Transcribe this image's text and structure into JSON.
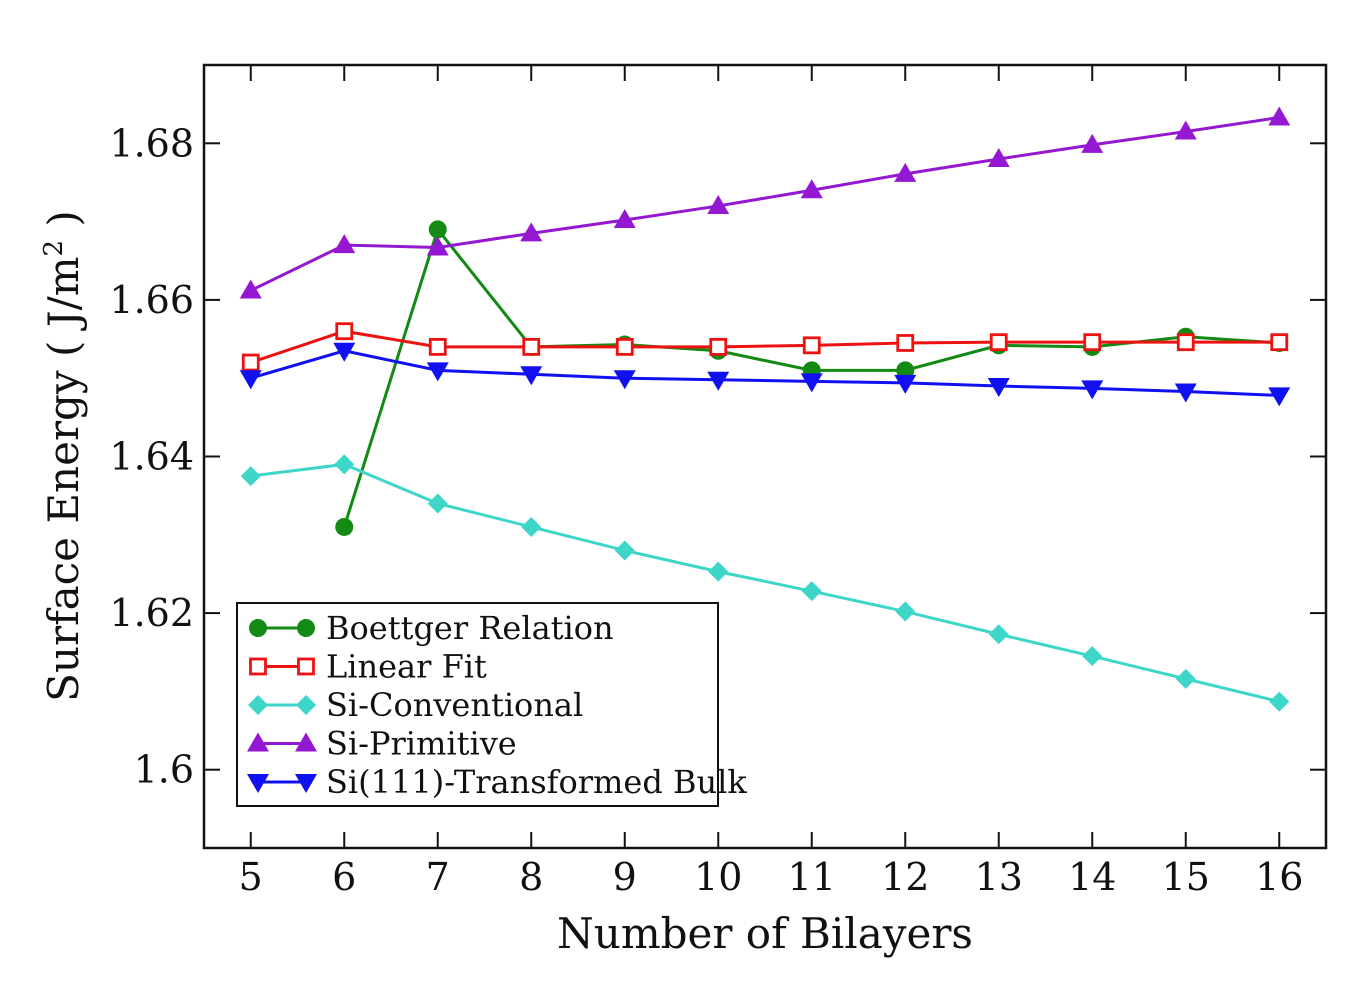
{
  "chart_data": {
    "type": "line",
    "title": "",
    "xlabel": "Number of Bilayers",
    "ylabel": "Surface Energy ( J/m",
    "ylabel_sup": "2",
    "ylabel_close": " )",
    "xlim": [
      4.5,
      16.5
    ],
    "ylim": [
      1.59,
      1.69
    ],
    "xticks": [
      5,
      6,
      7,
      8,
      9,
      10,
      11,
      12,
      13,
      14,
      15,
      16
    ],
    "xtick_labels": [
      "5",
      "6",
      "7",
      "8",
      "9",
      "10",
      "11",
      "12",
      "13",
      "14",
      "15",
      "16"
    ],
    "yticks": [
      1.6,
      1.62,
      1.64,
      1.66,
      1.68
    ],
    "ytick_labels": [
      "1.6",
      "1.62",
      "1.64",
      "1.66",
      "1.68"
    ],
    "grid": false,
    "legend_position": "bottom-left",
    "series": [
      {
        "name": "Boettger Relation",
        "color": "#138a13",
        "marker": "circle",
        "x": [
          6,
          7,
          8,
          9,
          10,
          11,
          12,
          13,
          14,
          15,
          16
        ],
        "values": [
          1.631,
          1.669,
          1.654,
          1.6543,
          1.6535,
          1.651,
          1.651,
          1.6542,
          1.654,
          1.6553,
          1.6545
        ]
      },
      {
        "name": "Linear Fit",
        "color": "#ee1111",
        "marker": "square-open",
        "x": [
          5,
          6,
          7,
          8,
          9,
          10,
          11,
          12,
          13,
          14,
          15,
          16
        ],
        "values": [
          1.652,
          1.656,
          1.654,
          1.654,
          1.654,
          1.654,
          1.6542,
          1.6545,
          1.6546,
          1.6546,
          1.6546,
          1.6546
        ]
      },
      {
        "name": "Si-Conventional",
        "color": "#3dd6c8",
        "marker": "diamond",
        "x": [
          5,
          6,
          7,
          8,
          9,
          10,
          11,
          12,
          13,
          14,
          15,
          16
        ],
        "values": [
          1.6375,
          1.639,
          1.634,
          1.631,
          1.628,
          1.6253,
          1.6228,
          1.6202,
          1.6173,
          1.6145,
          1.6116,
          1.6087
        ]
      },
      {
        "name": "Si-Primitive",
        "color": "#9418d1",
        "marker": "triangle-up",
        "x": [
          5,
          6,
          7,
          8,
          9,
          10,
          11,
          12,
          13,
          14,
          15,
          16
        ],
        "values": [
          1.6612,
          1.667,
          1.6667,
          1.6685,
          1.6702,
          1.672,
          1.674,
          1.6761,
          1.678,
          1.6798,
          1.6815,
          1.6833
        ]
      },
      {
        "name": "Si(111)-Transformed Bulk",
        "color": "#1010f0",
        "marker": "triangle-down",
        "x": [
          5,
          6,
          7,
          8,
          9,
          10,
          11,
          12,
          13,
          14,
          15,
          16
        ],
        "values": [
          1.65,
          1.6535,
          1.651,
          1.6505,
          1.65,
          1.6498,
          1.6496,
          1.6494,
          1.649,
          1.6487,
          1.6483,
          1.6478
        ]
      }
    ]
  }
}
